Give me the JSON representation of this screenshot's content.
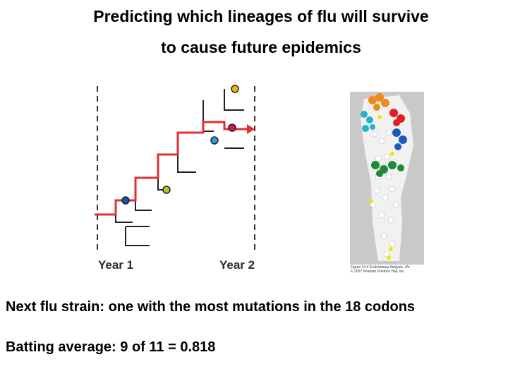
{
  "title": {
    "line1": "Predicting which lineages of flu will survive",
    "line2": "to cause future epidemics"
  },
  "tree": {
    "year_start_label": "Year 1",
    "year_end_label": "Year 2",
    "trunk_color": "#e03033",
    "branch_color": "#222222",
    "node_colors": {
      "gold": "#f2b705",
      "magenta": "#d4145a",
      "sky_blue": "#2a9ee0",
      "olive_green": "#b2c632",
      "navy_blue": "#1f4ea8"
    }
  },
  "figure": {
    "caption_line1": "Figure 14.4 Evolutionary Analysis, 4/e",
    "caption_line2": "© 2007 Pearson Prentice Hall, Inc."
  },
  "notes": {
    "prediction": "Next flu strain: one with the most mutations in the 18 codons",
    "batting": "Batting average:  9 of 11 = 0.818"
  }
}
